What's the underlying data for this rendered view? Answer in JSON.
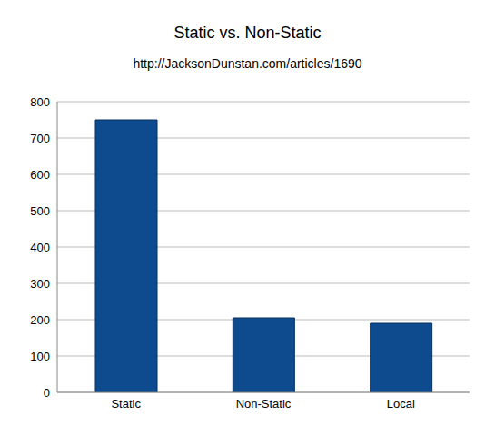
{
  "chart_data": {
    "type": "bar",
    "title": "Static vs. Non-Static",
    "subtitle": "http://JacksonDunstan.com/articles/1690",
    "categories": [
      "Static",
      "Non-Static",
      "Local"
    ],
    "values": [
      750,
      205,
      190
    ],
    "color": "#0d4a8e",
    "ylim": [
      0,
      800
    ],
    "yticks": [
      0,
      100,
      200,
      300,
      400,
      500,
      600,
      700,
      800
    ],
    "grid": true
  }
}
